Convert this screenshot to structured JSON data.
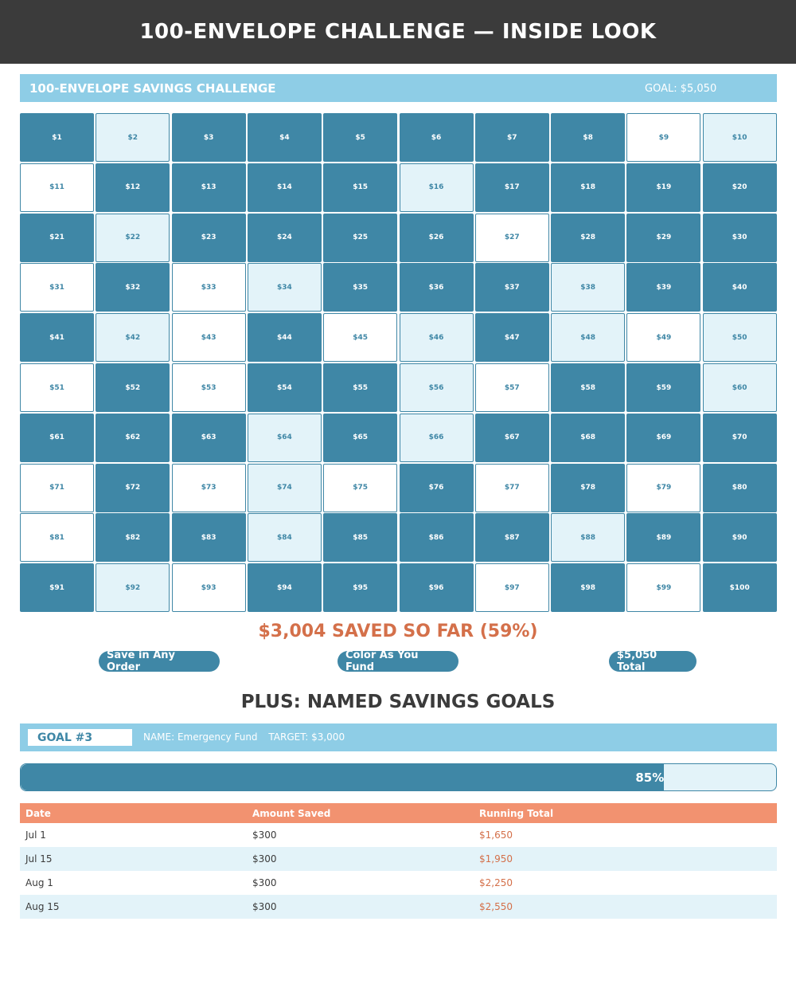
{
  "banner": {
    "title": "100-ENVELOPE CHALLENGE — INSIDE LOOK"
  },
  "challenge": {
    "title": "100-ENVELOPE SAVINGS CHALLENGE",
    "goal_text": "GOAL: $5,050",
    "envelopes": [
      {
        "label": "$1",
        "status": "funded"
      },
      {
        "label": "$2",
        "status": "partial"
      },
      {
        "label": "$3",
        "status": "funded"
      },
      {
        "label": "$4",
        "status": "funded"
      },
      {
        "label": "$5",
        "status": "funded"
      },
      {
        "label": "$6",
        "status": "funded"
      },
      {
        "label": "$7",
        "status": "funded"
      },
      {
        "label": "$8",
        "status": "funded"
      },
      {
        "label": "$9",
        "status": "empty"
      },
      {
        "label": "$10",
        "status": "partial"
      },
      {
        "label": "$11",
        "status": "empty"
      },
      {
        "label": "$12",
        "status": "funded"
      },
      {
        "label": "$13",
        "status": "funded"
      },
      {
        "label": "$14",
        "status": "funded"
      },
      {
        "label": "$15",
        "status": "funded"
      },
      {
        "label": "$16",
        "status": "partial"
      },
      {
        "label": "$17",
        "status": "funded"
      },
      {
        "label": "$18",
        "status": "funded"
      },
      {
        "label": "$19",
        "status": "funded"
      },
      {
        "label": "$20",
        "status": "funded"
      },
      {
        "label": "$21",
        "status": "funded"
      },
      {
        "label": "$22",
        "status": "partial"
      },
      {
        "label": "$23",
        "status": "funded"
      },
      {
        "label": "$24",
        "status": "funded"
      },
      {
        "label": "$25",
        "status": "funded"
      },
      {
        "label": "$26",
        "status": "funded"
      },
      {
        "label": "$27",
        "status": "empty"
      },
      {
        "label": "$28",
        "status": "funded"
      },
      {
        "label": "$29",
        "status": "funded"
      },
      {
        "label": "$30",
        "status": "funded"
      },
      {
        "label": "$31",
        "status": "empty"
      },
      {
        "label": "$32",
        "status": "funded"
      },
      {
        "label": "$33",
        "status": "empty"
      },
      {
        "label": "$34",
        "status": "partial"
      },
      {
        "label": "$35",
        "status": "funded"
      },
      {
        "label": "$36",
        "status": "funded"
      },
      {
        "label": "$37",
        "status": "funded"
      },
      {
        "label": "$38",
        "status": "partial"
      },
      {
        "label": "$39",
        "status": "funded"
      },
      {
        "label": "$40",
        "status": "funded"
      },
      {
        "label": "$41",
        "status": "funded"
      },
      {
        "label": "$42",
        "status": "partial"
      },
      {
        "label": "$43",
        "status": "empty"
      },
      {
        "label": "$44",
        "status": "funded"
      },
      {
        "label": "$45",
        "status": "empty"
      },
      {
        "label": "$46",
        "status": "partial"
      },
      {
        "label": "$47",
        "status": "funded"
      },
      {
        "label": "$48",
        "status": "partial"
      },
      {
        "label": "$49",
        "status": "empty"
      },
      {
        "label": "$50",
        "status": "partial"
      },
      {
        "label": "$51",
        "status": "empty"
      },
      {
        "label": "$52",
        "status": "funded"
      },
      {
        "label": "$53",
        "status": "empty"
      },
      {
        "label": "$54",
        "status": "funded"
      },
      {
        "label": "$55",
        "status": "funded"
      },
      {
        "label": "$56",
        "status": "partial"
      },
      {
        "label": "$57",
        "status": "empty"
      },
      {
        "label": "$58",
        "status": "funded"
      },
      {
        "label": "$59",
        "status": "funded"
      },
      {
        "label": "$60",
        "status": "partial"
      },
      {
        "label": "$61",
        "status": "funded"
      },
      {
        "label": "$62",
        "status": "funded"
      },
      {
        "label": "$63",
        "status": "funded"
      },
      {
        "label": "$64",
        "status": "partial"
      },
      {
        "label": "$65",
        "status": "funded"
      },
      {
        "label": "$66",
        "status": "partial"
      },
      {
        "label": "$67",
        "status": "funded"
      },
      {
        "label": "$68",
        "status": "funded"
      },
      {
        "label": "$69",
        "status": "funded"
      },
      {
        "label": "$70",
        "status": "funded"
      },
      {
        "label": "$71",
        "status": "empty"
      },
      {
        "label": "$72",
        "status": "funded"
      },
      {
        "label": "$73",
        "status": "empty"
      },
      {
        "label": "$74",
        "status": "partial"
      },
      {
        "label": "$75",
        "status": "empty"
      },
      {
        "label": "$76",
        "status": "funded"
      },
      {
        "label": "$77",
        "status": "empty"
      },
      {
        "label": "$78",
        "status": "funded"
      },
      {
        "label": "$79",
        "status": "empty"
      },
      {
        "label": "$80",
        "status": "funded"
      },
      {
        "label": "$81",
        "status": "empty"
      },
      {
        "label": "$82",
        "status": "funded"
      },
      {
        "label": "$83",
        "status": "funded"
      },
      {
        "label": "$84",
        "status": "partial"
      },
      {
        "label": "$85",
        "status": "funded"
      },
      {
        "label": "$86",
        "status": "funded"
      },
      {
        "label": "$87",
        "status": "funded"
      },
      {
        "label": "$88",
        "status": "partial"
      },
      {
        "label": "$89",
        "status": "funded"
      },
      {
        "label": "$90",
        "status": "funded"
      },
      {
        "label": "$91",
        "status": "funded"
      },
      {
        "label": "$92",
        "status": "partial"
      },
      {
        "label": "$93",
        "status": "empty"
      },
      {
        "label": "$94",
        "status": "funded"
      },
      {
        "label": "$95",
        "status": "funded"
      },
      {
        "label": "$96",
        "status": "funded"
      },
      {
        "label": "$97",
        "status": "empty"
      },
      {
        "label": "$98",
        "status": "funded"
      },
      {
        "label": "$99",
        "status": "empty"
      },
      {
        "label": "$100",
        "status": "funded"
      }
    ],
    "saved_summary": "$3,004 SAVED SO FAR (59%)",
    "pills": [
      "Save in Any Order",
      "Color As You Fund",
      "$5,050 Total"
    ]
  },
  "goals": {
    "section_title": "PLUS: NAMED SAVINGS GOALS",
    "badge": "GOAL #3",
    "name_text": "NAME: Emergency Fund",
    "target_text": "TARGET: $3,000",
    "progress_percent": 85,
    "progress_label": "85%"
  },
  "deposits": {
    "columns": [
      "Date",
      "Amount Saved",
      "Running Total"
    ],
    "rows": [
      [
        "Jul 1",
        "$300",
        "$1,650"
      ],
      [
        "Jul 15",
        "$300",
        "$1,950"
      ],
      [
        "Aug 1",
        "$300",
        "$2,250"
      ],
      [
        "Aug 15",
        "$300",
        "$2,550"
      ]
    ]
  },
  "colors": {
    "banner": "#3b3b3b",
    "header_blue": "#8ecde6",
    "funded": "#3f87a6",
    "partial": "#e3f3f9",
    "accent_orange": "#d4704a",
    "table_header": "#f29270"
  }
}
